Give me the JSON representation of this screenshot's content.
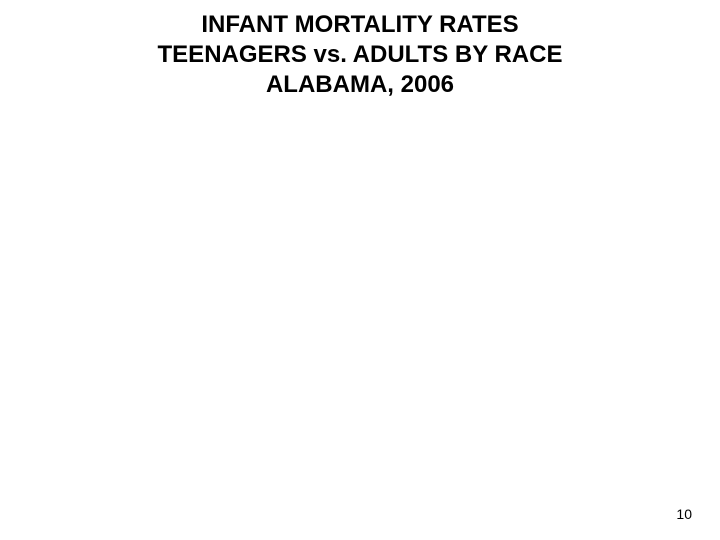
{
  "title": {
    "line1": "INFANT MORTALITY RATES",
    "line2": "TEENAGERS vs. ADULTS BY RACE",
    "line3": "ALABAMA, 2006",
    "fontsize": 24,
    "color": "#000000",
    "font_weight": "bold"
  },
  "page_number": {
    "value": "10",
    "fontsize": 14,
    "color": "#000000"
  },
  "background_color": "#ffffff"
}
